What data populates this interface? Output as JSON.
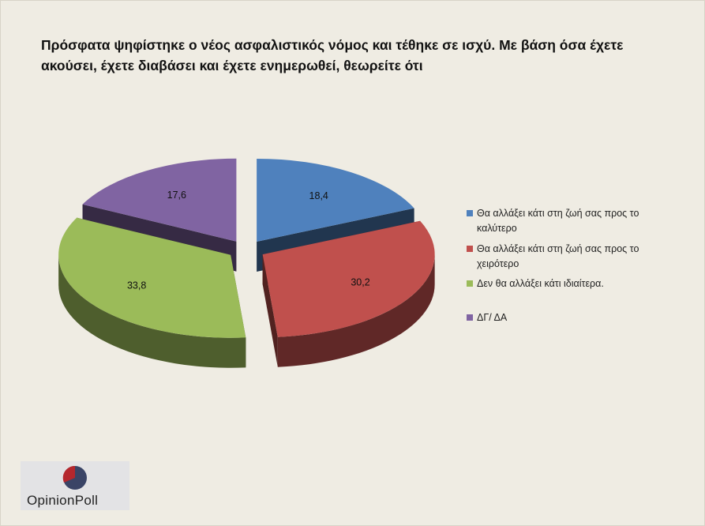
{
  "title": "Πρόσφατα ψηφίστηκε ο νέος ασφαλιστικός νόμος και τέθηκε σε ισχύ. Με βάση όσα έχετε ακούσει, έχετε διαβάσει και έχετε ενημερωθεί, θεωρείτε ότι",
  "chart_data": {
    "type": "pie",
    "style": "3d-exploded",
    "categories": [
      "Θα αλλάξει κάτι στη ζωή σας προς το καλύτερο",
      "Θα αλλάξει κάτι στη ζωή σας προς το χειρότερο",
      "Δεν θα αλλάξει κάτι ιδιαίτερα.",
      "ΔΓ/ ΔΑ"
    ],
    "values": [
      18.4,
      30.2,
      33.8,
      17.6
    ],
    "labels": [
      "18,4",
      "30,2",
      "33,8",
      "17,6"
    ],
    "colors": [
      "#4f81bd",
      "#c0504d",
      "#9bbb59",
      "#8064a2"
    ],
    "legend_position": "right"
  },
  "legend": {
    "items": [
      "Θα αλλάξει κάτι στη ζωή σας προς το καλύτερο",
      "Θα αλλάξει κάτι στη ζωή σας προς το χειρότερο",
      "Δεν θα αλλάξει κάτι ιδιαίτερα.",
      "ΔΓ/ ΔΑ"
    ]
  },
  "logo": {
    "text": "OpinionPoll"
  }
}
